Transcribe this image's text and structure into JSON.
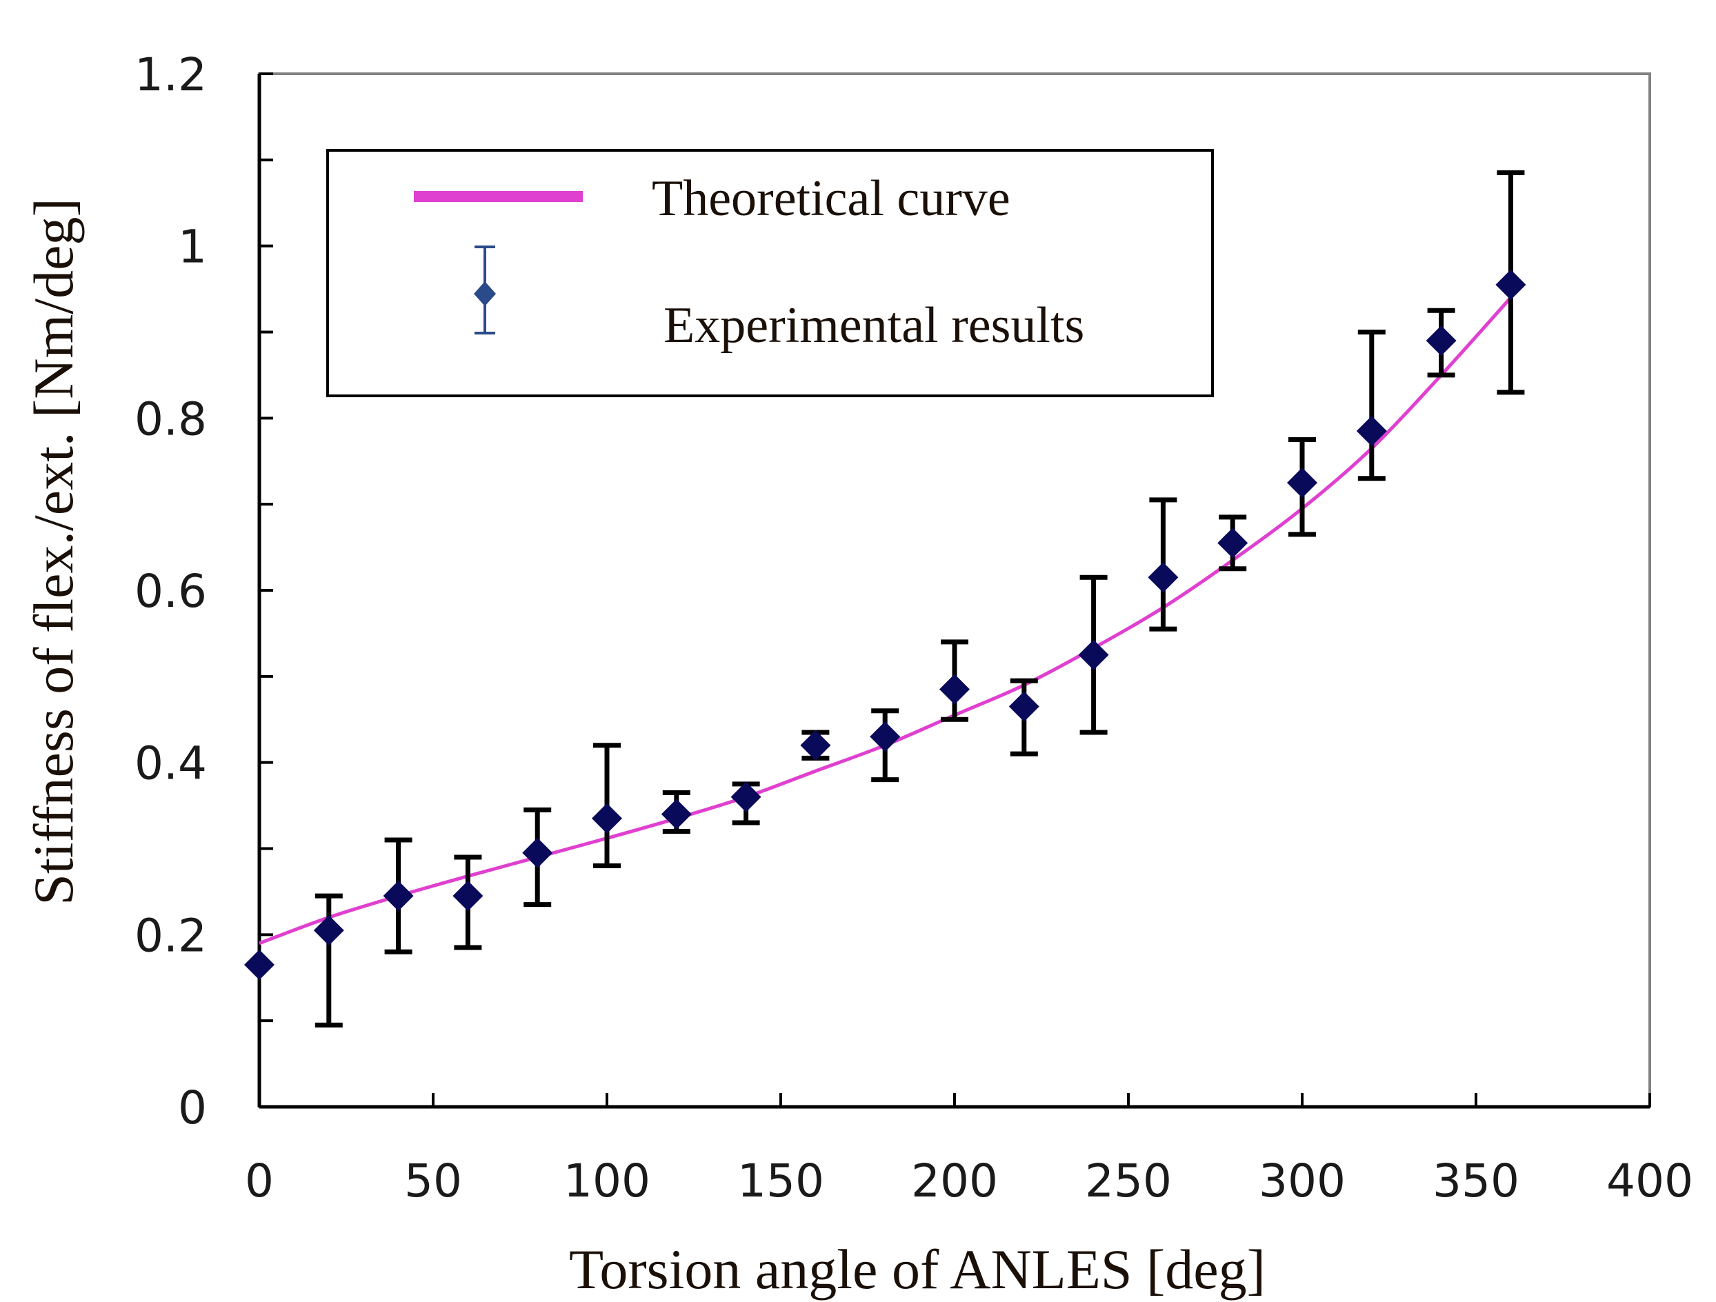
{
  "chart_data": {
    "type": "scatter",
    "xlabel": "Torsion angle of ANLES [deg]",
    "ylabel": "Stiffness of flex./ext. [Nm/deg]",
    "xlim": [
      0,
      400
    ],
    "ylim": [
      0,
      1.2
    ],
    "x_ticks": [
      0,
      50,
      100,
      150,
      200,
      250,
      300,
      350,
      400
    ],
    "x_tick_labels": [
      "0",
      "50",
      "100",
      "150",
      "200",
      "250",
      "300",
      "350",
      "400"
    ],
    "y_ticks": [
      0,
      0.2,
      0.4,
      0.6,
      0.8,
      1.0,
      1.2
    ],
    "y_tick_labels": [
      "0",
      "0.2",
      "0.4",
      "0.6",
      "0.8",
      "1",
      "1.2"
    ],
    "grid": false,
    "legend_position": "top-left",
    "colors": {
      "theoretical": "#e040d0",
      "experimental": "#0a0a5a",
      "error_bar": "#000000",
      "legend_error_bar": "#2a4a8a",
      "axis": "#000000",
      "frame": "#808080"
    },
    "series": [
      {
        "name": "Theoretical curve",
        "kind": "line",
        "x": [
          0,
          20,
          40,
          60,
          80,
          100,
          120,
          140,
          160,
          180,
          200,
          220,
          240,
          260,
          280,
          300,
          320,
          340,
          360
        ],
        "values": [
          0.19,
          0.22,
          0.245,
          0.268,
          0.29,
          0.312,
          0.335,
          0.36,
          0.39,
          0.42,
          0.455,
          0.49,
          0.533,
          0.58,
          0.635,
          0.695,
          0.765,
          0.85,
          0.94
        ]
      },
      {
        "name": "Experimental results",
        "kind": "scatter_errorbar",
        "x": [
          0,
          20,
          40,
          60,
          80,
          100,
          120,
          140,
          160,
          180,
          200,
          220,
          240,
          260,
          280,
          300,
          320,
          340,
          360
        ],
        "values": [
          0.165,
          0.205,
          0.245,
          0.245,
          0.295,
          0.335,
          0.34,
          0.36,
          0.42,
          0.43,
          0.485,
          0.465,
          0.525,
          0.615,
          0.655,
          0.725,
          0.785,
          0.89,
          0.955
        ],
        "lower": [
          0.165,
          0.095,
          0.18,
          0.185,
          0.235,
          0.28,
          0.32,
          0.33,
          0.405,
          0.38,
          0.45,
          0.41,
          0.435,
          0.555,
          0.625,
          0.665,
          0.73,
          0.85,
          0.83
        ],
        "upper": [
          0.165,
          0.245,
          0.31,
          0.29,
          0.345,
          0.42,
          0.365,
          0.375,
          0.435,
          0.46,
          0.54,
          0.495,
          0.615,
          0.705,
          0.685,
          0.775,
          0.9,
          0.925,
          1.085
        ]
      }
    ]
  }
}
